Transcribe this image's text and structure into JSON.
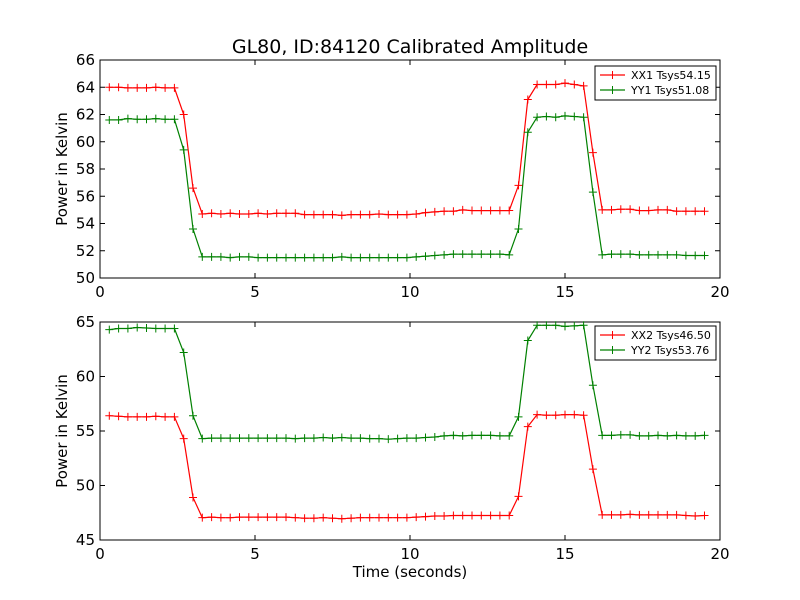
{
  "title": "GL80, ID:84120 Calibrated Amplitude",
  "chart_data": [
    {
      "type": "line",
      "ylabel": "Power in Kelvin",
      "xlabel": "",
      "xlim": [
        0,
        20
      ],
      "ylim": [
        50,
        66
      ],
      "xticks": [
        "0",
        "5",
        "10",
        "15",
        "20"
      ],
      "yticks": [
        "50",
        "52",
        "54",
        "56",
        "58",
        "60",
        "62",
        "64",
        "66"
      ],
      "legend_position": "upper-right",
      "x": [
        0.3,
        0.6,
        0.9,
        1.2,
        1.5,
        1.8,
        2.1,
        2.4,
        2.7,
        3.0,
        3.3,
        3.6,
        3.9,
        4.2,
        4.5,
        4.8,
        5.1,
        5.4,
        5.7,
        6.0,
        6.3,
        6.6,
        6.9,
        7.2,
        7.5,
        7.8,
        8.1,
        8.4,
        8.7,
        9.0,
        9.3,
        9.6,
        9.9,
        10.2,
        10.5,
        10.8,
        11.1,
        11.4,
        11.7,
        12.0,
        12.3,
        12.6,
        12.9,
        13.2,
        13.5,
        13.8,
        14.1,
        14.4,
        14.7,
        15.0,
        15.3,
        15.6,
        15.9,
        16.2,
        16.5,
        16.8,
        17.1,
        17.4,
        17.7,
        18.0,
        18.3,
        18.6,
        18.9,
        19.2,
        19.5
      ],
      "series": [
        {
          "name": "XX1 Tsys54.15",
          "color": "#ff0000",
          "values": [
            64.0,
            64.0,
            63.95,
            63.95,
            63.95,
            64.0,
            63.95,
            63.95,
            62.0,
            56.6,
            54.7,
            54.75,
            54.7,
            54.75,
            54.7,
            54.7,
            54.75,
            54.7,
            54.75,
            54.75,
            54.75,
            54.65,
            54.65,
            54.65,
            54.65,
            54.6,
            54.65,
            54.65,
            54.65,
            54.7,
            54.65,
            54.65,
            54.65,
            54.7,
            54.8,
            54.85,
            54.9,
            54.9,
            55.0,
            54.95,
            54.95,
            54.95,
            54.95,
            54.95,
            56.8,
            63.1,
            64.2,
            64.2,
            64.2,
            64.3,
            64.2,
            64.1,
            59.2,
            55.0,
            55.0,
            55.05,
            55.05,
            54.95,
            54.95,
            55.0,
            55.0,
            54.9,
            54.9,
            54.9,
            54.9
          ]
        },
        {
          "name": "YY1 Tsys51.08",
          "color": "#008000",
          "values": [
            61.6,
            61.6,
            61.7,
            61.65,
            61.65,
            61.7,
            61.65,
            61.65,
            59.4,
            53.6,
            51.55,
            51.55,
            51.55,
            51.5,
            51.55,
            51.55,
            51.5,
            51.5,
            51.5,
            51.5,
            51.5,
            51.5,
            51.5,
            51.5,
            51.5,
            51.55,
            51.5,
            51.5,
            51.5,
            51.5,
            51.5,
            51.5,
            51.5,
            51.55,
            51.6,
            51.65,
            51.7,
            51.75,
            51.75,
            51.75,
            51.75,
            51.75,
            51.75,
            51.7,
            53.6,
            60.7,
            61.8,
            61.85,
            61.8,
            61.9,
            61.85,
            61.8,
            56.3,
            51.7,
            51.75,
            51.75,
            51.75,
            51.7,
            51.7,
            51.7,
            51.7,
            51.7,
            51.65,
            51.65,
            51.65
          ]
        }
      ]
    },
    {
      "type": "line",
      "ylabel": "Power in Kelvin",
      "xlabel": "Time (seconds)",
      "xlim": [
        0,
        20
      ],
      "ylim": [
        45,
        65
      ],
      "xticks": [
        "0",
        "5",
        "10",
        "15",
        "20"
      ],
      "yticks": [
        "45",
        "50",
        "55",
        "60",
        "65"
      ],
      "legend_position": "upper-right",
      "x": [
        0.3,
        0.6,
        0.9,
        1.2,
        1.5,
        1.8,
        2.1,
        2.4,
        2.7,
        3.0,
        3.3,
        3.6,
        3.9,
        4.2,
        4.5,
        4.8,
        5.1,
        5.4,
        5.7,
        6.0,
        6.3,
        6.6,
        6.9,
        7.2,
        7.5,
        7.8,
        8.1,
        8.4,
        8.7,
        9.0,
        9.3,
        9.6,
        9.9,
        10.2,
        10.5,
        10.8,
        11.1,
        11.4,
        11.7,
        12.0,
        12.3,
        12.6,
        12.9,
        13.2,
        13.5,
        13.8,
        14.1,
        14.4,
        14.7,
        15.0,
        15.3,
        15.6,
        15.9,
        16.2,
        16.5,
        16.8,
        17.1,
        17.4,
        17.7,
        18.0,
        18.3,
        18.6,
        18.9,
        19.2,
        19.5
      ],
      "series": [
        {
          "name": "XX2 Tsys46.50",
          "color": "#ff0000",
          "values": [
            56.4,
            56.35,
            56.3,
            56.3,
            56.3,
            56.35,
            56.3,
            56.3,
            54.3,
            48.9,
            47.05,
            47.1,
            47.05,
            47.05,
            47.1,
            47.1,
            47.1,
            47.1,
            47.1,
            47.1,
            47.05,
            47.0,
            47.0,
            47.05,
            47.0,
            46.95,
            47.0,
            47.05,
            47.05,
            47.05,
            47.05,
            47.05,
            47.05,
            47.1,
            47.15,
            47.2,
            47.2,
            47.25,
            47.25,
            47.25,
            47.25,
            47.25,
            47.25,
            47.25,
            49.0,
            55.4,
            56.5,
            56.45,
            56.45,
            56.5,
            56.5,
            56.45,
            51.5,
            47.3,
            47.3,
            47.3,
            47.35,
            47.3,
            47.3,
            47.3,
            47.3,
            47.3,
            47.25,
            47.2,
            47.25
          ]
        },
        {
          "name": "YY2 Tsys53.76",
          "color": "#008000",
          "values": [
            64.3,
            64.4,
            64.4,
            64.5,
            64.45,
            64.4,
            64.4,
            64.4,
            62.2,
            56.4,
            54.3,
            54.35,
            54.35,
            54.35,
            54.35,
            54.35,
            54.35,
            54.35,
            54.35,
            54.35,
            54.3,
            54.35,
            54.35,
            54.4,
            54.35,
            54.4,
            54.35,
            54.35,
            54.3,
            54.3,
            54.25,
            54.3,
            54.35,
            54.35,
            54.4,
            54.45,
            54.55,
            54.6,
            54.55,
            54.6,
            54.6,
            54.6,
            54.55,
            54.55,
            56.3,
            63.3,
            64.7,
            64.7,
            64.7,
            64.6,
            64.65,
            64.7,
            59.2,
            54.6,
            54.6,
            54.65,
            54.65,
            54.55,
            54.55,
            54.6,
            54.55,
            54.6,
            54.55,
            54.55,
            54.6
          ]
        }
      ]
    }
  ]
}
